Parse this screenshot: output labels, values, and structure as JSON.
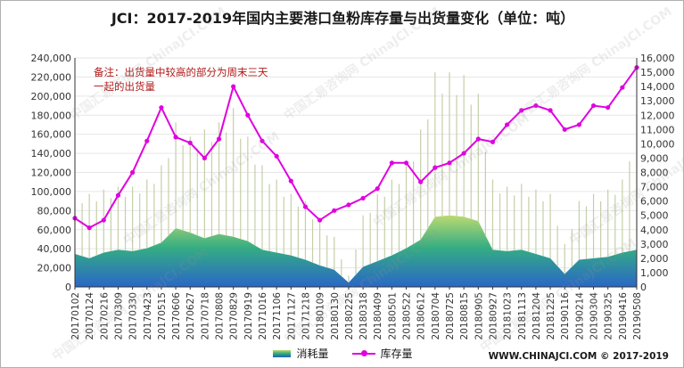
{
  "chart_data": {
    "type": "line",
    "title": "JCI：2017-2019年国内主要港口鱼粉库存量与出货量变化（单位：吨）",
    "annotation": "备注：出货量中较高的部分为周末三天一起的出货量",
    "footer": "WWW.CHINAJCI.COM © 2017-2019",
    "watermark": "中国汇易咨询网 ChinaJCI.COM",
    "left_axis": {
      "min": 0,
      "max": 240000,
      "ticks": [
        "0",
        "20,000",
        "40,000",
        "60,000",
        "80,000",
        "100,000",
        "120,000",
        "140,000",
        "160,000",
        "180,000",
        "200,000",
        "220,000",
        "240,000"
      ]
    },
    "right_axis": {
      "min": 0,
      "max": 16000,
      "ticks": [
        "0",
        "1,000",
        "2,000",
        "3,000",
        "4,000",
        "5,000",
        "6,000",
        "7,000",
        "8,000",
        "9,000",
        "10,000",
        "11,000",
        "12,000",
        "13,000",
        "14,000",
        "15,000",
        "16,000"
      ]
    },
    "x_tick_labels": [
      "20170102",
      "20170124",
      "20170216",
      "20170309",
      "20170330",
      "20170423",
      "20170515",
      "20170606",
      "20170627",
      "20170718",
      "20170808",
      "20170829",
      "20170919",
      "20171016",
      "20171106",
      "20171127",
      "20171218",
      "20180109",
      "20180130",
      "20180225",
      "20180318",
      "20180409",
      "20180501",
      "20180522",
      "20180612",
      "20180704",
      "20180725",
      "20180815",
      "20180905",
      "20180927",
      "20181023",
      "20181113",
      "20181204",
      "20181225",
      "20190116",
      "20190214",
      "20190304",
      "20190325",
      "20190416",
      "20190508"
    ],
    "series": [
      {
        "name": "库存量",
        "axis": "left",
        "color": "#e000e0",
        "x": [
          "20170102",
          "20170124",
          "20170216",
          "20170309",
          "20170330",
          "20170423",
          "20170515",
          "20170606",
          "20170627",
          "20170718",
          "20170808",
          "20170829",
          "20170919",
          "20171016",
          "20171106",
          "20171127",
          "20171218",
          "20180109",
          "20180130",
          "20180225",
          "20180318",
          "20180409",
          "20180501",
          "20180522",
          "20180612",
          "20180704",
          "20180725",
          "20180815",
          "20180905",
          "20180927",
          "20181023",
          "20181113",
          "20181204",
          "20181225",
          "20190116",
          "20190214",
          "20190304",
          "20190325",
          "20190416",
          "20190508"
        ],
        "values": [
          72000,
          62000,
          70000,
          96000,
          120000,
          153000,
          188000,
          157000,
          151000,
          135000,
          155000,
          210000,
          180000,
          153000,
          137000,
          111000,
          84000,
          70000,
          80000,
          86000,
          93000,
          103000,
          130000,
          130000,
          110000,
          125000,
          130000,
          140000,
          155000,
          152000,
          170000,
          185000,
          190000,
          185000,
          165000,
          170000,
          190000,
          188000,
          209000,
          230000
        ]
      },
      {
        "name": "消耗量",
        "axis": "right",
        "colors": [
          "#1f5fc4",
          "#2aa97c",
          "#b8d86a"
        ],
        "x": [
          "20170102",
          "20170124",
          "20170216",
          "20170309",
          "20170330",
          "20170423",
          "20170515",
          "20170606",
          "20170627",
          "20170718",
          "20170808",
          "20170829",
          "20170919",
          "20171016",
          "20171106",
          "20171127",
          "20171218",
          "20180109",
          "20180130",
          "20180225",
          "20180318",
          "20180409",
          "20180501",
          "20180522",
          "20180612",
          "20180704",
          "20180725",
          "20180815",
          "20180905",
          "20180927",
          "20181023",
          "20181113",
          "20181204",
          "20181225",
          "20190116",
          "20190214",
          "20190304",
          "20190325",
          "20190416",
          "20190508"
        ],
        "values": [
          2300,
          2000,
          2400,
          2600,
          2500,
          2700,
          3100,
          4100,
          3800,
          3400,
          3700,
          3500,
          3200,
          2600,
          2400,
          2200,
          1900,
          1500,
          1200,
          300,
          1400,
          1800,
          2200,
          2700,
          3300,
          4900,
          5000,
          4900,
          4600,
          2600,
          2500,
          2600,
          2300,
          2000,
          900,
          1900,
          2000,
          2100,
          2400,
          2600
        ],
        "peak_values": [
          6500,
          6500,
          6800,
          7000,
          7000,
          7500,
          8500,
          11500,
          10500,
          11000,
          11500,
          12500,
          10500,
          8500,
          7500,
          6500,
          6000,
          4500,
          3500,
          800,
          5000,
          6500,
          7500,
          8500,
          11000,
          15000,
          15000,
          14800,
          13500,
          7500,
          7000,
          7200,
          6800,
          6500,
          3000,
          6000,
          6500,
          6800,
          7500,
          12000
        ]
      }
    ]
  }
}
